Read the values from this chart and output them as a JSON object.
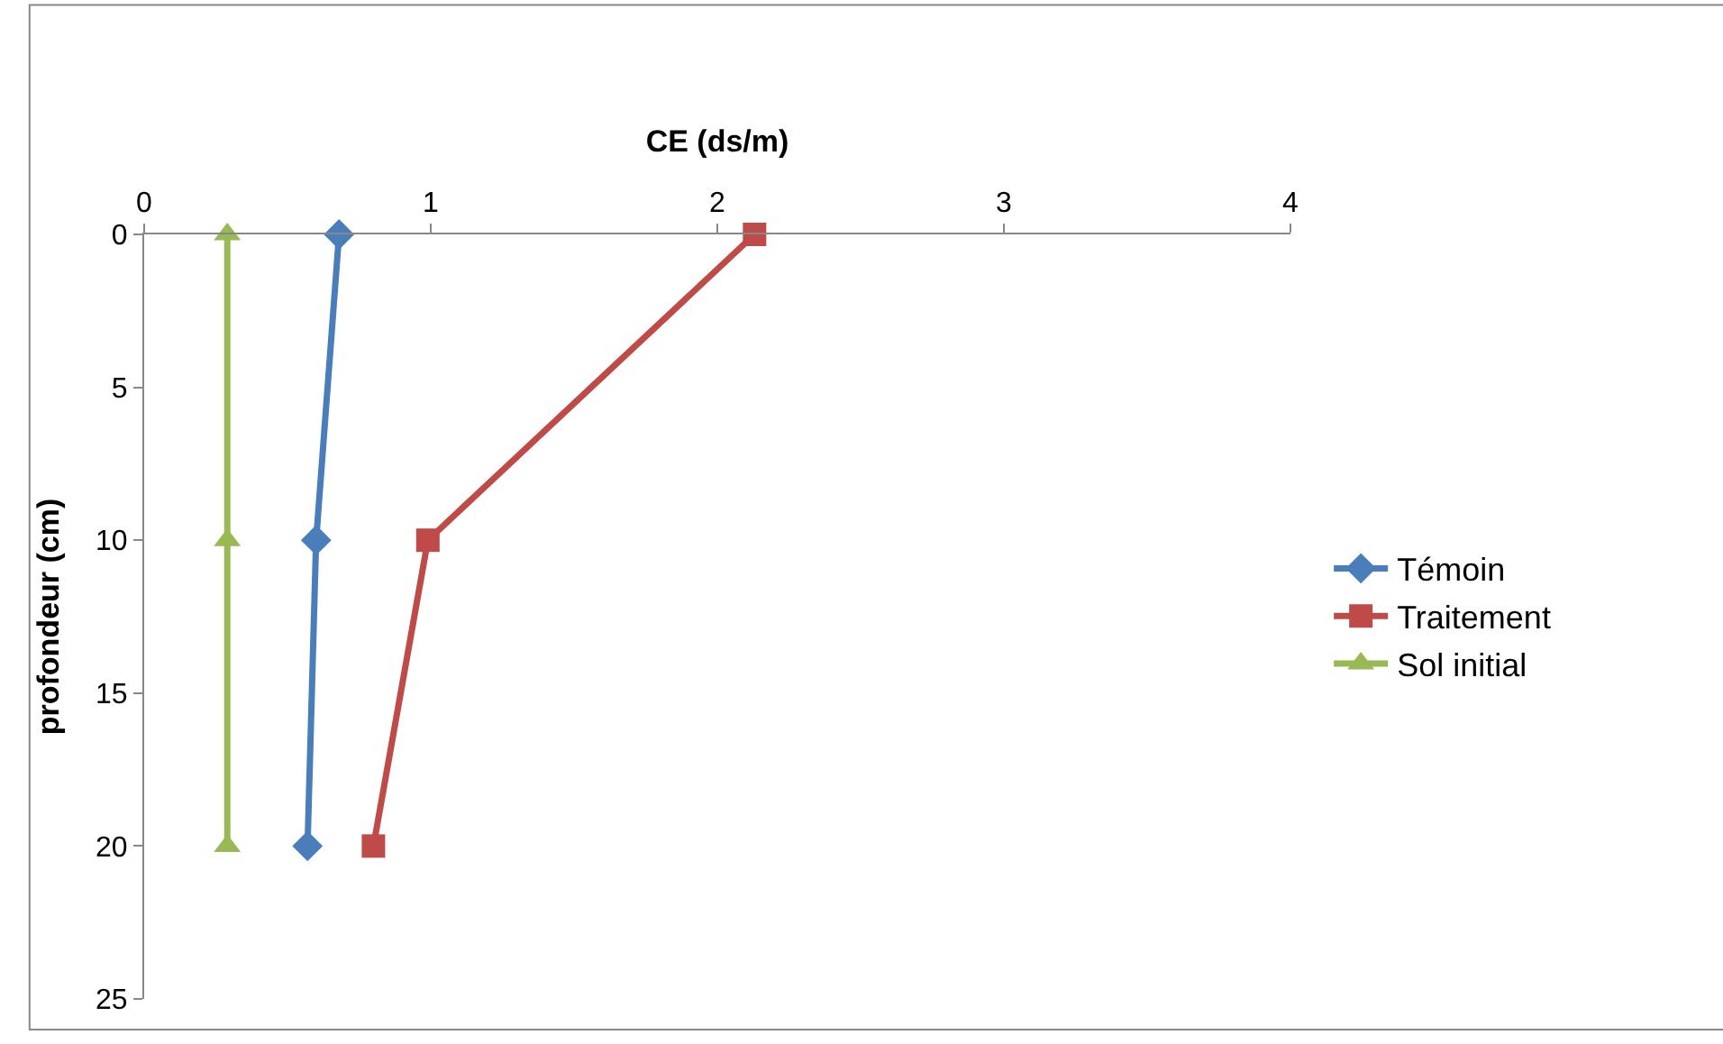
{
  "chart_data": {
    "type": "line",
    "xlabel": "CE (ds/m)",
    "ylabel": "profondeur (cm)",
    "xlim": [
      0,
      4
    ],
    "xticks": [
      0,
      1,
      2,
      3,
      4
    ],
    "ylim": [
      25,
      0
    ],
    "yticks": [
      0,
      5,
      10,
      15,
      20,
      25
    ],
    "legend": "right",
    "series": [
      {
        "name": "Témoin",
        "color": "#4a7ebb",
        "marker": "diamond",
        "x": [
          0.68,
          0.6,
          0.57
        ],
        "values": [
          0,
          10,
          20
        ]
      },
      {
        "name": "Traitement",
        "color": "#be4b48",
        "marker": "square",
        "x": [
          2.13,
          0.99,
          0.8
        ],
        "values": [
          0,
          10,
          20
        ]
      },
      {
        "name": "Sol initial",
        "color": "#98b954",
        "marker": "triangle",
        "x": [
          0.29,
          0.29,
          0.29
        ],
        "values": [
          0,
          10,
          20
        ]
      }
    ]
  }
}
